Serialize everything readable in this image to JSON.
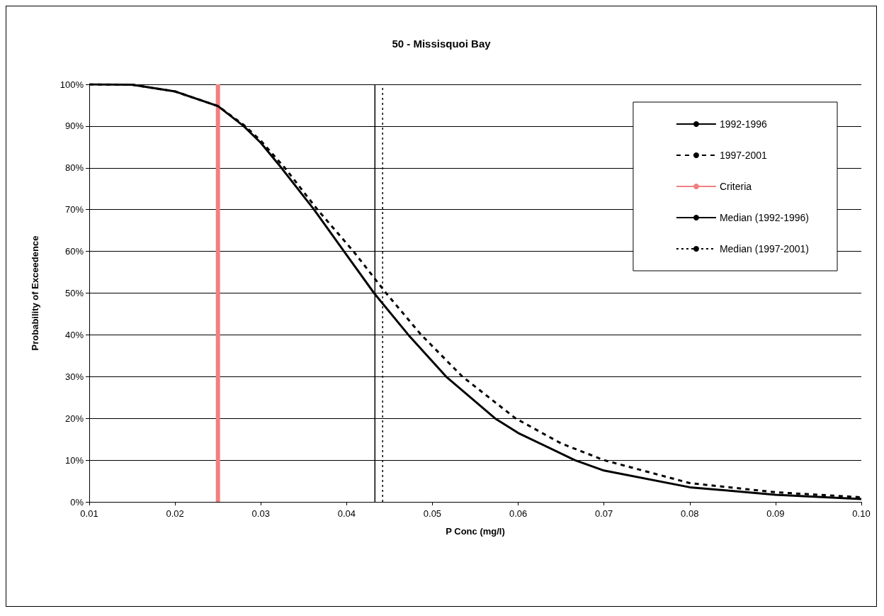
{
  "chart_data": {
    "type": "line",
    "title": "50 - Missisquoi Bay",
    "xlabel": "P Conc (mg/l)",
    "ylabel": "Probability of Exceedence",
    "xlim": [
      0.01,
      0.1
    ],
    "xticks": [
      0.01,
      0.02,
      0.03,
      0.04,
      0.05,
      0.06,
      0.07,
      0.08,
      0.09,
      {
        "value": 0.1,
        "label": "0.10"
      }
    ],
    "ylim": [
      0,
      100
    ],
    "yticks": [
      {
        "value": 0,
        "label": "0%"
      },
      {
        "value": 10,
        "label": "10%"
      },
      {
        "value": 20,
        "label": "20%"
      },
      {
        "value": 30,
        "label": "30%"
      },
      {
        "value": 40,
        "label": "40%"
      },
      {
        "value": 50,
        "label": "50%"
      },
      {
        "value": 60,
        "label": "60%"
      },
      {
        "value": 70,
        "label": "70%"
      },
      {
        "value": 80,
        "label": "80%"
      },
      {
        "value": 90,
        "label": "90%"
      },
      {
        "value": 100,
        "label": "100%"
      }
    ],
    "grid": "y",
    "legend": "top right",
    "marker": "none",
    "series": [
      {
        "name": "1992-1996",
        "color": "#000000",
        "line_style": "solid",
        "x": [
          0.01,
          0.015,
          0.02,
          0.025,
          0.028,
          0.03,
          0.0324,
          0.0362,
          0.0397,
          0.0432,
          0.0472,
          0.0516,
          0.0573,
          0.06,
          0.0666,
          0.07,
          0.08,
          0.09,
          0.1
        ],
        "values": [
          100,
          99.9,
          98.3,
          94.8,
          90,
          86,
          80,
          70,
          60,
          50,
          40,
          30,
          20,
          16.5,
          10,
          7.5,
          3.5,
          1.7,
          0.7
        ]
      },
      {
        "name": "1997-2001",
        "color": "#000000",
        "line_style": "dashed",
        "x": [
          0.01,
          0.015,
          0.02,
          0.025,
          0.028,
          0.03,
          0.0328,
          0.0366,
          0.0408,
          0.0446,
          0.0487,
          0.0535,
          0.0597,
          0.065,
          0.07,
          0.08,
          0.09,
          0.1
        ],
        "values": [
          100,
          99.9,
          98.3,
          94.8,
          90.3,
          86.5,
          80,
          70,
          60,
          50,
          40,
          30,
          20,
          14,
          10,
          4.5,
          2.3,
          1.1
        ]
      },
      {
        "name": "Criteria",
        "color": "#f08080",
        "line_style": "solid",
        "x": [
          0.025,
          0.025
        ],
        "values": [
          0,
          100
        ]
      },
      {
        "name": "Median (1992-1996)",
        "color": "#000000",
        "line_style": "solid",
        "x": [
          0.0433,
          0.0433
        ],
        "values": [
          0,
          100
        ]
      },
      {
        "name": "Median (1997-2001)",
        "color": "#000000",
        "line_style": "dotted",
        "x": [
          0.0442,
          0.0442
        ],
        "values": [
          0,
          100
        ]
      }
    ]
  }
}
